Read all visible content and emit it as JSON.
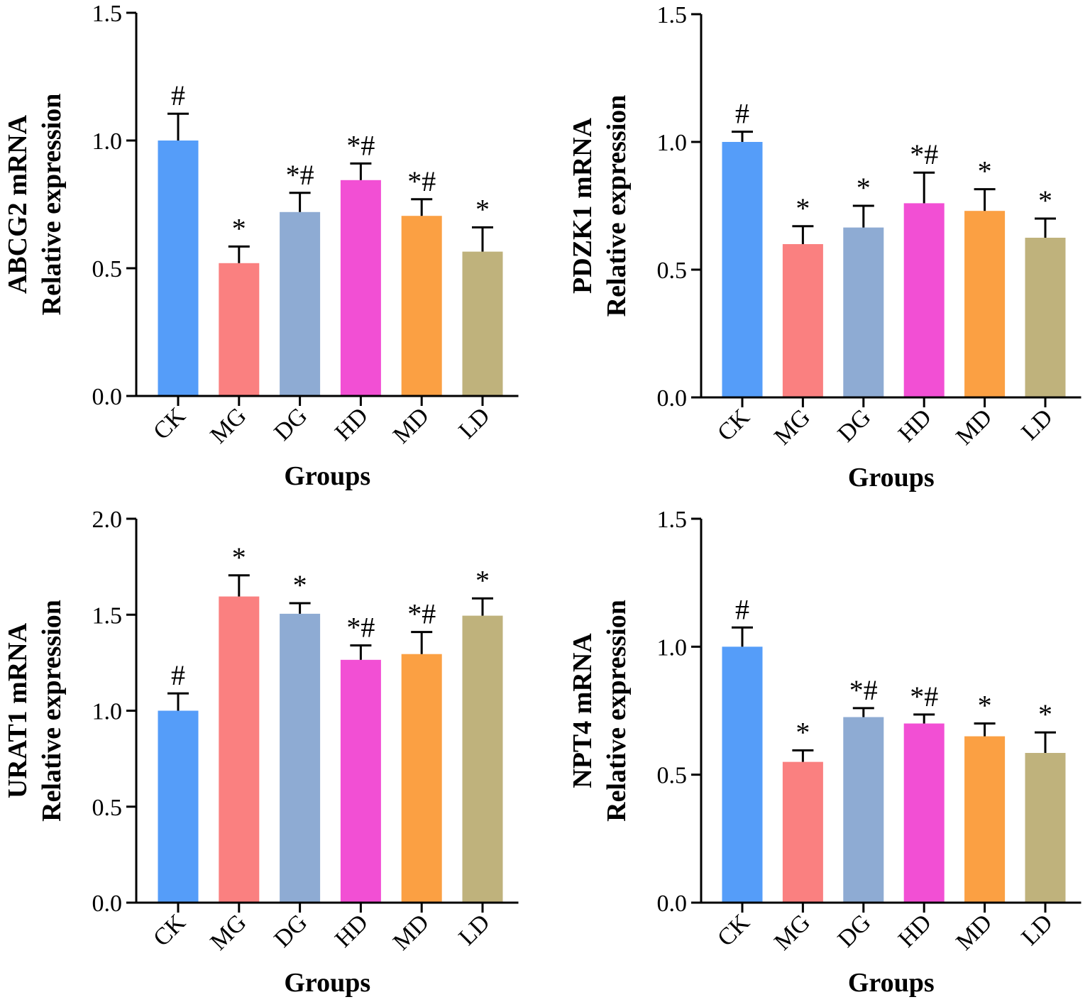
{
  "chart_data": [
    {
      "type": "bar",
      "ylabel_line1": "ABCG2 mRNA",
      "ylabel_line2": "Relative expression",
      "xlabel": "Groups",
      "categories": [
        "CK",
        "MG",
        "DG",
        "HD",
        "MD",
        "LD"
      ],
      "values": [
        1.0,
        0.52,
        0.72,
        0.845,
        0.705,
        0.565
      ],
      "errors": [
        0.105,
        0.065,
        0.075,
        0.065,
        0.065,
        0.095
      ],
      "annotations": [
        "#",
        "*",
        "*#",
        "*#",
        "*#",
        "*"
      ],
      "ylim": [
        0,
        1.5
      ],
      "yticks": [
        "0.0",
        "0.5",
        "1.0",
        "1.5"
      ],
      "colors": [
        "#559DF9",
        "#FA8080",
        "#8EABD3",
        "#F24FD4",
        "#FBA043",
        "#BFB27C"
      ]
    },
    {
      "type": "bar",
      "ylabel_line1": "PDZK1 mRNA",
      "ylabel_line2": "Relative expression",
      "xlabel": "Groups",
      "categories": [
        "CK",
        "MG",
        "DG",
        "HD",
        "MD",
        "LD"
      ],
      "values": [
        1.0,
        0.6,
        0.665,
        0.76,
        0.73,
        0.625
      ],
      "errors": [
        0.04,
        0.07,
        0.085,
        0.12,
        0.085,
        0.075
      ],
      "annotations": [
        "#",
        "*",
        "*",
        "*#",
        "*",
        "*"
      ],
      "ylim": [
        0,
        1.5
      ],
      "yticks": [
        "0.0",
        "0.5",
        "1.0",
        "1.5"
      ],
      "colors": [
        "#559DF9",
        "#FA8080",
        "#8EABD3",
        "#F24FD4",
        "#FBA043",
        "#BFB27C"
      ]
    },
    {
      "type": "bar",
      "ylabel_line1": "URAT1 mRNA",
      "ylabel_line2": "Relative expression",
      "xlabel": "Groups",
      "categories": [
        "CK",
        "MG",
        "DG",
        "HD",
        "MD",
        "LD"
      ],
      "values": [
        1.0,
        1.595,
        1.505,
        1.265,
        1.295,
        1.495
      ],
      "errors": [
        0.09,
        0.11,
        0.055,
        0.075,
        0.115,
        0.09
      ],
      "annotations": [
        "#",
        "*",
        "*",
        "*#",
        "*#",
        "*"
      ],
      "ylim": [
        0,
        2.0
      ],
      "yticks": [
        "0.0",
        "0.5",
        "1.0",
        "1.5",
        "2.0"
      ],
      "colors": [
        "#559DF9",
        "#FA8080",
        "#8EABD3",
        "#F24FD4",
        "#FBA043",
        "#BFB27C"
      ]
    },
    {
      "type": "bar",
      "ylabel_line1": "NPT4 mRNA",
      "ylabel_line2": "Relative expression",
      "xlabel": "Groups",
      "categories": [
        "CK",
        "MG",
        "DG",
        "HD",
        "MD",
        "LD"
      ],
      "values": [
        1.0,
        0.55,
        0.725,
        0.7,
        0.65,
        0.585
      ],
      "errors": [
        0.075,
        0.045,
        0.035,
        0.035,
        0.05,
        0.08
      ],
      "annotations": [
        "#",
        "*",
        "*#",
        "*#",
        "*",
        "*"
      ],
      "ylim": [
        0,
        1.5
      ],
      "yticks": [
        "0.0",
        "0.5",
        "1.0",
        "1.5"
      ],
      "colors": [
        "#559DF9",
        "#FA8080",
        "#8EABD3",
        "#F24FD4",
        "#FBA043",
        "#BFB27C"
      ]
    }
  ]
}
